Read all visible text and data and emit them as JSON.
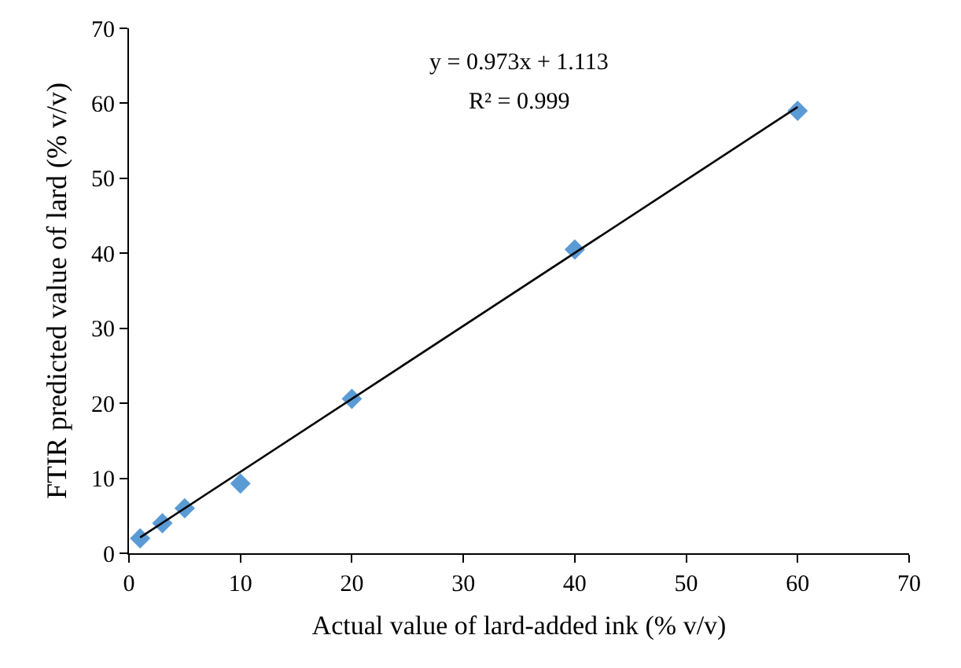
{
  "chart_data": {
    "type": "scatter",
    "xlabel": "Actual value of lard-added ink (% v/v)",
    "ylabel": "FTIR predicted value of lard (% v/v)",
    "x": [
      1,
      3,
      5,
      10,
      20,
      40,
      60
    ],
    "series": [
      {
        "color": "#5b9bd5",
        "marker": "diamond",
        "values": [
          2,
          4,
          6,
          9.3,
          20.6,
          40.5,
          59
        ]
      },
      {
        "type": "line",
        "color": "#000000",
        "line_style": "solid",
        "marker": "none",
        "x": [
          1,
          60
        ],
        "values": [
          2.1,
          59.5
        ]
      }
    ],
    "annotations": [
      "y = 0.973x + 1.113",
      "R² = 0.999"
    ],
    "xlim": [
      0,
      70
    ],
    "xticks": [
      0,
      10,
      20,
      30,
      40,
      50,
      60,
      70
    ],
    "ylim": [
      0,
      70
    ],
    "yticks": [
      0,
      10,
      20,
      30,
      40,
      50,
      60,
      70
    ],
    "grid": false
  }
}
